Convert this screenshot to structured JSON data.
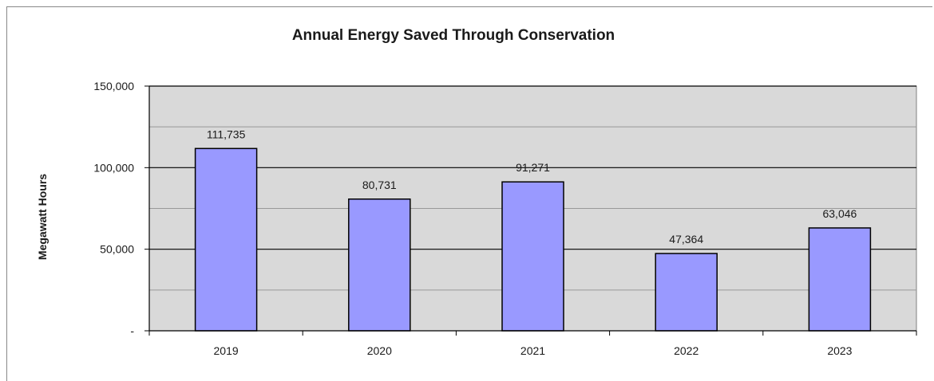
{
  "chart_data": {
    "type": "bar",
    "title": "Annual Energy Saved Through Conservation",
    "xlabel": "",
    "ylabel": "Megawatt Hours",
    "categories": [
      "2019",
      "2020",
      "2021",
      "2022",
      "2023"
    ],
    "values": [
      111735,
      80731,
      91271,
      47364,
      63046
    ],
    "data_labels": [
      "111,735",
      "80,731",
      "91,271",
      "47,364",
      "63,046"
    ],
    "ylim": [
      0,
      150000
    ],
    "yticks": [
      0,
      50000,
      100000,
      150000
    ],
    "ytick_labels": [
      "-",
      "50,000",
      "100,000",
      "150,000"
    ],
    "grid": true,
    "legend": "none",
    "colors": {
      "bar_fill": "#9999ff",
      "bar_stroke": "#000000",
      "plot_background": "#d9d9d9",
      "gridline": "#000000"
    }
  }
}
